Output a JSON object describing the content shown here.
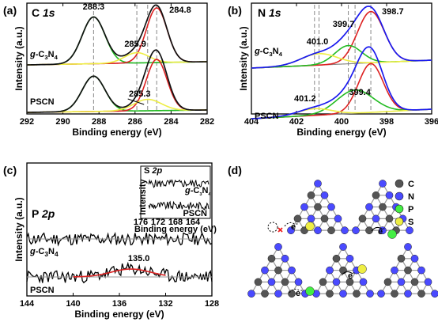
{
  "chart_data": [
    {
      "type": "line",
      "panel": "(a)",
      "core_level": "C 1s",
      "xlabel": "Binding energy (eV)",
      "ylabel": "Intensity (a.u.)",
      "xlim": [
        292,
        282
      ],
      "x_ticks": [
        292,
        290,
        288,
        286,
        284,
        282
      ],
      "samples": [
        "g-C3N4",
        "PSCN"
      ],
      "peak_labels": [
        {
          "text": "288.3",
          "x": 288.3
        },
        {
          "text": "284.8",
          "x": 284.8
        },
        {
          "text": "285.9",
          "x": 285.9
        },
        {
          "text": "285.3",
          "x": 285.3
        }
      ],
      "components": [
        {
          "sample": "g-C3N4",
          "color": "#22bb22",
          "center": 288.3,
          "height": 0.82,
          "fwhm": 1.5
        },
        {
          "sample": "g-C3N4",
          "color": "#dd2222",
          "center": 284.8,
          "height": 0.96,
          "fwhm": 1.35
        },
        {
          "sample": "g-C3N4",
          "color": "#eeee44",
          "center": 285.9,
          "height": 0.18,
          "fwhm": 1.6
        },
        {
          "sample": "PSCN",
          "color": "#22bb22",
          "center": 288.3,
          "height": 0.62,
          "fwhm": 1.5
        },
        {
          "sample": "PSCN",
          "color": "#dd2222",
          "center": 284.8,
          "height": 0.9,
          "fwhm": 1.35
        },
        {
          "sample": "PSCN",
          "color": "#eeee44",
          "center": 285.3,
          "height": 0.2,
          "fwhm": 1.8
        }
      ],
      "dashed_guides": [
        288.3,
        285.9,
        285.3,
        284.8
      ]
    },
    {
      "type": "line",
      "panel": "(b)",
      "core_level": "N 1s",
      "xlabel": "Binding energy (eV)",
      "ylabel": "Intensity (a.u.)",
      "xlim": [
        404,
        396
      ],
      "x_ticks": [
        404,
        402,
        400,
        398,
        396
      ],
      "samples": [
        "g-C3N4",
        "PSCN"
      ],
      "peak_labels": [
        {
          "text": "398.7",
          "x": 398.7
        },
        {
          "text": "399.7",
          "x": 399.7
        },
        {
          "text": "401.0",
          "x": 401.0
        },
        {
          "text": "399.4",
          "x": 399.4
        },
        {
          "text": "401.2",
          "x": 401.2
        }
      ],
      "components": [
        {
          "sample": "g-C3N4",
          "color": "#dd2222",
          "center": 398.7,
          "height": 0.9,
          "fwhm": 1.4
        },
        {
          "sample": "g-C3N4",
          "color": "#22bb22",
          "center": 399.7,
          "height": 0.32,
          "fwhm": 1.4
        },
        {
          "sample": "g-C3N4",
          "color": "#eeee44",
          "center": 401.0,
          "height": 0.2,
          "fwhm": 1.9
        },
        {
          "sample": "PSCN",
          "color": "#dd2222",
          "center": 398.7,
          "height": 0.88,
          "fwhm": 1.3
        },
        {
          "sample": "PSCN",
          "color": "#22bb22",
          "center": 399.4,
          "height": 0.42,
          "fwhm": 1.9
        },
        {
          "sample": "PSCN",
          "color": "#eeee44",
          "center": 401.2,
          "height": 0.12,
          "fwhm": 1.8
        }
      ],
      "envelope_color": "#1a1aee",
      "dashed_guides": [
        401.0,
        401.2,
        399.7,
        399.4,
        398.7
      ]
    },
    {
      "type": "line",
      "panel": "(c)",
      "core_level": "P 2p",
      "xlabel": "Binding energy (eV)",
      "ylabel": "Intensity (a.u.)",
      "xlim": [
        144,
        128
      ],
      "x_ticks": [
        144,
        140,
        136,
        132,
        128
      ],
      "samples": [
        "g-C3N4",
        "PSCN"
      ],
      "peak_labels": [
        {
          "text": "135.0",
          "x": 135.0
        }
      ],
      "fit_color": "#dd2222",
      "inset": {
        "core_level": "S 2p",
        "xlabel": "Binding energy (eV)",
        "ylabel": "Intensity",
        "xlim": [
          176,
          160
        ],
        "x_ticks": [
          176,
          172,
          168,
          164
        ],
        "samples": [
          "g-C3N4",
          "PSCN"
        ]
      }
    }
  ],
  "diagram": {
    "panel": "(d)",
    "legend": [
      {
        "label": "C",
        "color": "#555555"
      },
      {
        "label": "N",
        "color": "#4a4aff"
      },
      {
        "label": "P",
        "color": "#44ee44"
      },
      {
        "label": "S",
        "color": "#eeee44"
      }
    ],
    "electron_label": "e",
    "electron_sup": "-"
  }
}
